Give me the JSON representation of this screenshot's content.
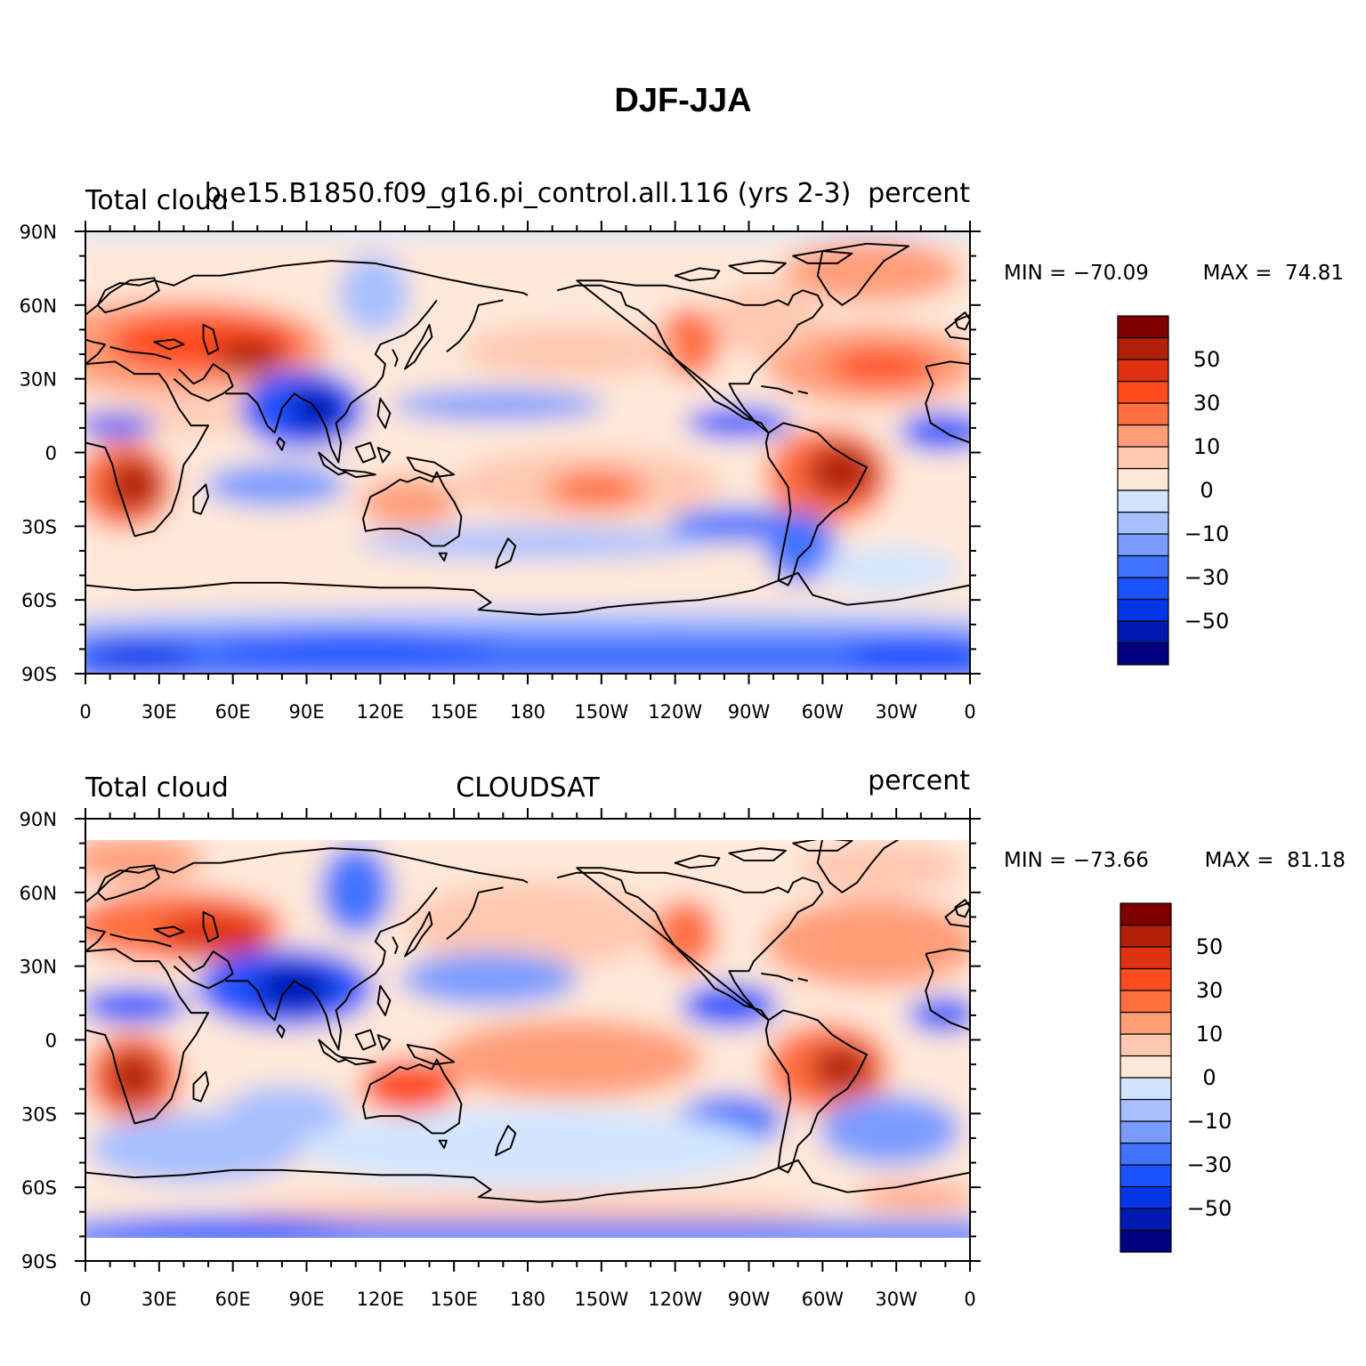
{
  "title": "DJF-JJA",
  "colors": {
    "levels": [
      "#000080",
      "#0019b3",
      "#0536e6",
      "#1a53ff",
      "#4273ff",
      "#7a9cff",
      "#a8c0ff",
      "#d1e5ff",
      "#ffe8d9",
      "#ffc8b0",
      "#ff9d78",
      "#ff7040",
      "#ff4b1e",
      "#e03211",
      "#b3200a",
      "#800000"
    ],
    "coastline": "#000000"
  },
  "colorbar_labels": [
    "50",
    "30",
    "10",
    "0",
    "−10",
    "−30",
    "−50"
  ],
  "lat_ticks": [
    "90N",
    "60N",
    "30N",
    "0",
    "30S",
    "60S",
    "90S"
  ],
  "lon_ticks": [
    "0",
    "30E",
    "60E",
    "90E",
    "120E",
    "150E",
    "180",
    "150W",
    "120W",
    "90W",
    "60W",
    "30W",
    "0"
  ],
  "panels": [
    {
      "left_label": "Total cloud",
      "center_label": "b.e15.B1850.f09_g16.pi_control.all.116 (yrs 2-3)",
      "right_label": "percent",
      "min_text": "MIN = −70.09",
      "max_text": "MAX =  74.81"
    },
    {
      "left_label": "Total cloud",
      "center_label": "CLOUDSAT",
      "right_label": "percent",
      "min_text": "MIN = −73.66",
      "max_text": "MAX =  81.18"
    }
  ]
}
